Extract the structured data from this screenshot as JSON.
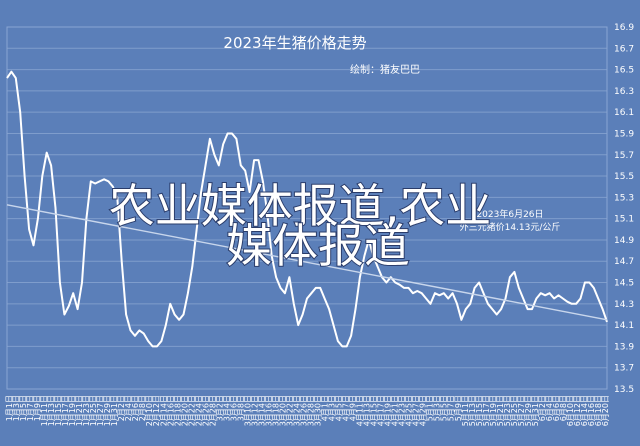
{
  "chart_data": {
    "type": "line",
    "title": "2023年生猪价格走势",
    "subtitle": "绘制：猪友巴巴",
    "annotation_lines": [
      "2023年6月26日",
      "外三元猪价14.13元/公斤"
    ],
    "watermark_lines": [
      "农业媒体报道,农业",
      "媒体报道"
    ],
    "ylim": [
      13.5,
      16.9
    ],
    "yticks": [
      "13.5",
      "13.7",
      "13.9",
      "14.1",
      "14.3",
      "14.5",
      "14.7",
      "14.9",
      "15.1",
      "15.3",
      "15.5",
      "15.7",
      "15.9",
      "16.1",
      "16.3",
      "16.5",
      "16.7",
      "16.9"
    ],
    "xticks": [
      "1月1日",
      "1月3日",
      "1月5日",
      "1月7日",
      "1月9日",
      "1月11日",
      "1月13日",
      "1月15日",
      "1月17日",
      "1月19日",
      "1月21日",
      "1月23日",
      "1月25日",
      "1月27日",
      "1月29日",
      "1月31日",
      "2月2日",
      "2月4日",
      "2月6日",
      "2月8日",
      "2月10日",
      "2月12日",
      "2月14日",
      "2月16日",
      "2月18日",
      "2月20日",
      "2月22日",
      "2月24日",
      "2月26日",
      "2月28日",
      "3月2日",
      "3月4日",
      "3月6日",
      "3月8日",
      "3月10日",
      "3月12日",
      "3月14日",
      "3月16日",
      "3月18日",
      "3月20日",
      "3月22日",
      "3月24日",
      "3月26日",
      "3月28日",
      "3月30日",
      "4月1日",
      "4月3日",
      "4月5日",
      "4月7日",
      "4月9日",
      "4月11日",
      "4月13日",
      "4月15日",
      "4月17日",
      "4月19日",
      "4月21日",
      "4月23日",
      "4月25日",
      "4月27日",
      "4月29日",
      "5月1日",
      "5月3日",
      "5月5日",
      "5月7日",
      "5月9日",
      "5月11日",
      "5月13日",
      "5月15日",
      "5月17日",
      "5月19日",
      "5月21日",
      "5月23日",
      "5月25日",
      "5月27日",
      "5月29日",
      "5月31日",
      "6月2日",
      "6月4日",
      "6月6日",
      "6月8日",
      "6月10日",
      "6月12日",
      "6月14日",
      "6月16日",
      "6月18日",
      "6月20日"
    ],
    "series": [
      {
        "color": "#ffffff",
        "values": [
          [
            0,
            16.42
          ],
          [
            1,
            16.48
          ],
          [
            2,
            16.42
          ],
          [
            3,
            16.1
          ],
          [
            4,
            15.5
          ],
          [
            5,
            15.0
          ],
          [
            6,
            14.85
          ],
          [
            7,
            15.1
          ],
          [
            8,
            15.5
          ],
          [
            9,
            15.72
          ],
          [
            10,
            15.6
          ],
          [
            11,
            15.2
          ],
          [
            12,
            14.5
          ],
          [
            13,
            14.2
          ],
          [
            14,
            14.28
          ],
          [
            15,
            14.4
          ],
          [
            16,
            14.25
          ],
          [
            17,
            14.5
          ],
          [
            18,
            15.1
          ],
          [
            19,
            15.45
          ],
          [
            20,
            15.43
          ],
          [
            21,
            15.45
          ],
          [
            22,
            15.47
          ],
          [
            23,
            15.45
          ],
          [
            24,
            15.4
          ],
          [
            25,
            15.3
          ],
          [
            26,
            14.7
          ],
          [
            27,
            14.2
          ],
          [
            28,
            14.05
          ],
          [
            29,
            14.0
          ],
          [
            30,
            14.05
          ],
          [
            31,
            14.02
          ],
          [
            32,
            13.95
          ],
          [
            33,
            13.9
          ],
          [
            34,
            13.9
          ],
          [
            35,
            13.95
          ],
          [
            36,
            14.1
          ],
          [
            37,
            14.3
          ],
          [
            38,
            14.2
          ],
          [
            39,
            14.15
          ],
          [
            40,
            14.2
          ],
          [
            41,
            14.4
          ],
          [
            42,
            14.65
          ],
          [
            43,
            15.0
          ],
          [
            44,
            15.35
          ],
          [
            45,
            15.6
          ],
          [
            46,
            15.85
          ],
          [
            47,
            15.7
          ],
          [
            48,
            15.6
          ],
          [
            49,
            15.8
          ],
          [
            50,
            15.9
          ],
          [
            51,
            15.9
          ],
          [
            52,
            15.85
          ],
          [
            53,
            15.6
          ],
          [
            54,
            15.55
          ],
          [
            55,
            15.35
          ],
          [
            56,
            15.65
          ],
          [
            57,
            15.65
          ],
          [
            58,
            15.45
          ],
          [
            59,
            15.15
          ],
          [
            60,
            14.75
          ],
          [
            61,
            14.55
          ],
          [
            62,
            14.45
          ],
          [
            63,
            14.4
          ],
          [
            64,
            14.55
          ],
          [
            65,
            14.3
          ],
          [
            66,
            14.1
          ],
          [
            67,
            14.2
          ],
          [
            68,
            14.35
          ],
          [
            69,
            14.4
          ],
          [
            70,
            14.45
          ],
          [
            71,
            14.45
          ],
          [
            72,
            14.35
          ],
          [
            73,
            14.25
          ],
          [
            74,
            14.1
          ],
          [
            75,
            13.95
          ],
          [
            76,
            13.9
          ],
          [
            77,
            13.9
          ],
          [
            78,
            14.0
          ],
          [
            79,
            14.25
          ],
          [
            80,
            14.55
          ],
          [
            81,
            14.75
          ],
          [
            82,
            14.9
          ],
          [
            83,
            14.75
          ],
          [
            84,
            14.65
          ],
          [
            85,
            14.55
          ],
          [
            86,
            14.5
          ],
          [
            87,
            14.55
          ],
          [
            88,
            14.5
          ],
          [
            89,
            14.48
          ],
          [
            90,
            14.45
          ],
          [
            91,
            14.45
          ],
          [
            92,
            14.4
          ],
          [
            93,
            14.42
          ],
          [
            94,
            14.4
          ],
          [
            95,
            14.35
          ],
          [
            96,
            14.3
          ],
          [
            97,
            14.4
          ],
          [
            98,
            14.38
          ],
          [
            99,
            14.4
          ],
          [
            100,
            14.35
          ],
          [
            101,
            14.4
          ],
          [
            102,
            14.3
          ],
          [
            103,
            14.15
          ],
          [
            104,
            14.25
          ],
          [
            105,
            14.3
          ],
          [
            106,
            14.45
          ],
          [
            107,
            14.5
          ],
          [
            108,
            14.4
          ],
          [
            109,
            14.3
          ],
          [
            110,
            14.25
          ],
          [
            111,
            14.2
          ],
          [
            112,
            14.25
          ],
          [
            113,
            14.35
          ],
          [
            114,
            14.55
          ],
          [
            115,
            14.6
          ],
          [
            116,
            14.45
          ],
          [
            117,
            14.35
          ],
          [
            118,
            14.25
          ],
          [
            119,
            14.25
          ],
          [
            120,
            14.35
          ],
          [
            121,
            14.4
          ],
          [
            122,
            14.38
          ],
          [
            123,
            14.4
          ],
          [
            124,
            14.35
          ],
          [
            125,
            14.38
          ],
          [
            126,
            14.35
          ],
          [
            127,
            14.32
          ],
          [
            128,
            14.3
          ],
          [
            129,
            14.3
          ],
          [
            130,
            14.35
          ],
          [
            131,
            14.5
          ],
          [
            132,
            14.5
          ],
          [
            133,
            14.45
          ],
          [
            134,
            14.35
          ],
          [
            135,
            14.25
          ],
          [
            136,
            14.13
          ]
        ]
      },
      {
        "color": "#c8d6ec",
        "values": [
          [
            0,
            15.23
          ],
          [
            136,
            14.15
          ]
        ]
      }
    ],
    "grid": true,
    "legend": "none"
  }
}
